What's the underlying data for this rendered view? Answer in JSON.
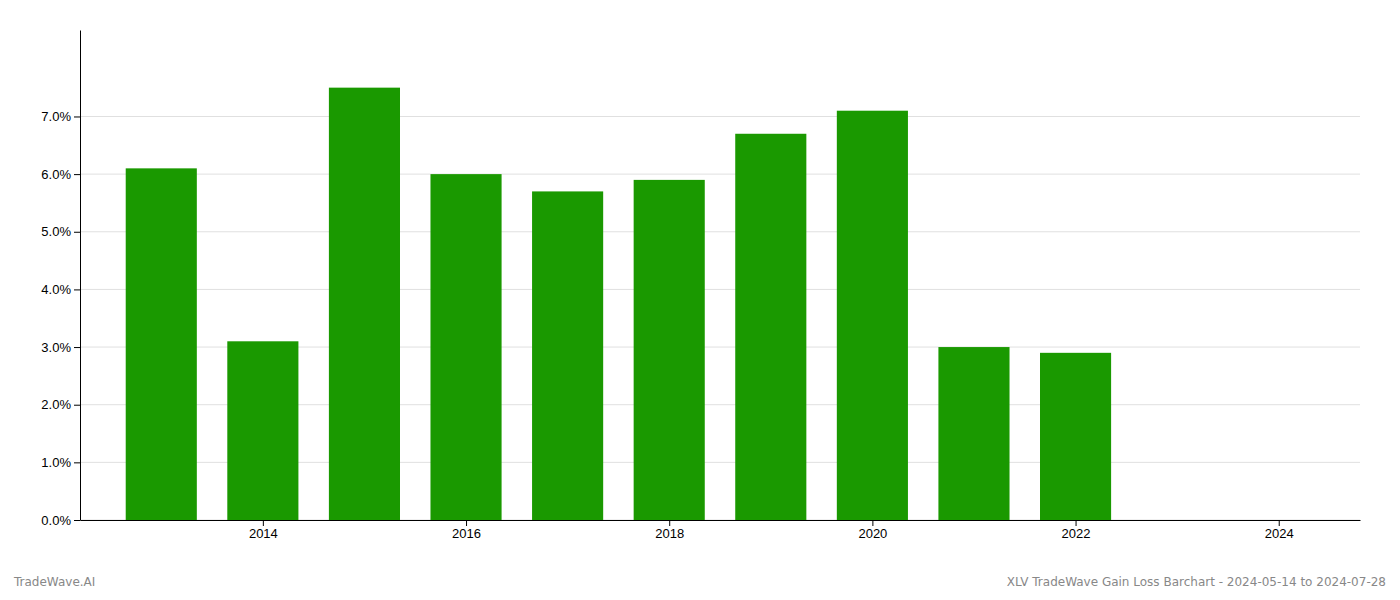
{
  "chart_data": {
    "type": "bar",
    "x": [
      2013,
      2014,
      2015,
      2016,
      2017,
      2018,
      2019,
      2020,
      2021,
      2022,
      2023
    ],
    "values": [
      0.061,
      0.031,
      0.075,
      0.06,
      0.057,
      0.059,
      0.067,
      0.071,
      0.03,
      0.029,
      0.0
    ],
    "color": "#1a9900",
    "xlim": [
      2012.2,
      2024.8
    ],
    "xticks": [
      2014,
      2016,
      2018,
      2020,
      2022,
      2024
    ],
    "ylim": [
      0,
      0.085
    ],
    "yticks": [
      {
        "value": 0.0,
        "label": "0.0%"
      },
      {
        "value": 0.01,
        "label": "1.0%"
      },
      {
        "value": 0.02,
        "label": "2.0%"
      },
      {
        "value": 0.03,
        "label": "3.0%"
      },
      {
        "value": 0.04,
        "label": "4.0%"
      },
      {
        "value": 0.05,
        "label": "5.0%"
      },
      {
        "value": 0.06,
        "label": "6.0%"
      },
      {
        "value": 0.07,
        "label": "7.0%"
      }
    ],
    "grid": true,
    "annotations": [
      "TradeWave.AI",
      "XLV TradeWave Gain Loss Barchart - 2024-05-14 to 2024-07-28"
    ]
  }
}
